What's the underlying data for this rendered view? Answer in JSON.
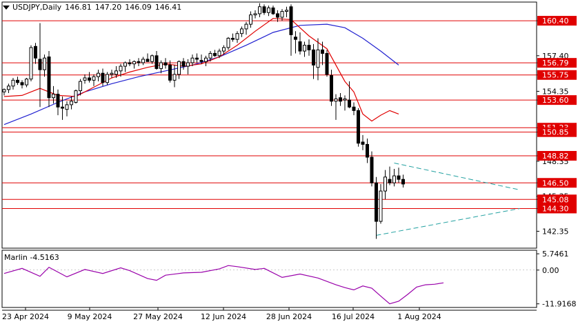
{
  "header": {
    "symbol": "USDJPY,Daily",
    "open": "146.81",
    "high": "147.20",
    "low": "146.09",
    "close": "146.41"
  },
  "indicator": {
    "name": "Marlin",
    "value": "-4.5163"
  },
  "colors": {
    "bull": "#ffffff",
    "bear": "#000000",
    "level_line": "#e00000",
    "level_tag_bg": "#e00000",
    "level_tag_text": "#ffffff",
    "ma_fast": "#e00000",
    "ma_slow": "#2020d0",
    "oscillator": "#9900aa",
    "triangle": "#20a0a0",
    "grid": "#000000"
  },
  "chart_data": [
    {
      "type": "candlestick",
      "title": "USDJPY,Daily",
      "ylim": [
        140.9,
        162.0
      ],
      "y_ticks": [
        "160.40",
        "157.40",
        "156.79",
        "155.75",
        "154.35",
        "153.60",
        "151.23",
        "150.85",
        "148.82",
        "148.35",
        "146.50",
        "145.35",
        "145.08",
        "144.30",
        "142.35"
      ],
      "x_tick_labels": [
        "23 Apr 2024",
        "9 May 2024",
        "27 May 2024",
        "12 Jun 2024",
        "28 Jun 2024",
        "16 Jul 2024",
        "1 Aug 2024"
      ],
      "levels": [
        {
          "value": 160.4,
          "label": "160.40"
        },
        {
          "value": 156.79,
          "label": "156.79"
        },
        {
          "value": 155.75,
          "label": "155.75"
        },
        {
          "value": 153.6,
          "label": "153.60"
        },
        {
          "value": 151.23,
          "label": "151.23"
        },
        {
          "value": 150.85,
          "label": "150.85"
        },
        {
          "value": 148.82,
          "label": "148.82"
        },
        {
          "value": 146.5,
          "label": "146.50"
        },
        {
          "value": 145.08,
          "label": "145.08"
        },
        {
          "value": 144.3,
          "label": "144.30"
        }
      ],
      "ohlc": [
        [
          154.3,
          154.6,
          154.0,
          154.5
        ],
        [
          154.5,
          155.0,
          154.2,
          154.8
        ],
        [
          154.8,
          155.5,
          154.5,
          155.3
        ],
        [
          155.3,
          155.6,
          154.9,
          155.1
        ],
        [
          155.1,
          155.3,
          154.6,
          154.9
        ],
        [
          154.9,
          155.5,
          154.7,
          155.4
        ],
        [
          155.4,
          158.3,
          155.2,
          158.1
        ],
        [
          158.2,
          158.5,
          156.7,
          157.2
        ],
        [
          157.1,
          160.2,
          153.0,
          156.2
        ],
        [
          156.2,
          157.5,
          155.6,
          157.2
        ],
        [
          157.3,
          157.8,
          153.0,
          153.8
        ],
        [
          153.8,
          154.8,
          153.3,
          154.1
        ],
        [
          154.1,
          154.5,
          152.3,
          153.0
        ],
        [
          153.0,
          153.9,
          151.9,
          152.9
        ],
        [
          152.8,
          153.5,
          152.2,
          153.2
        ],
        [
          153.2,
          153.9,
          152.8,
          153.5
        ],
        [
          153.4,
          154.5,
          153.3,
          154.4
        ],
        [
          154.4,
          155.4,
          154.0,
          155.2
        ],
        [
          155.3,
          155.8,
          155.0,
          155.5
        ],
        [
          155.5,
          156.0,
          155.1,
          155.3
        ],
        [
          155.3,
          155.8,
          154.8,
          155.6
        ],
        [
          155.6,
          156.2,
          155.2,
          155.9
        ],
        [
          155.9,
          156.3,
          154.8,
          155.1
        ],
        [
          155.1,
          156.0,
          154.9,
          155.8
        ],
        [
          155.8,
          156.2,
          155.5,
          155.9
        ],
        [
          155.8,
          156.5,
          155.5,
          156.1
        ],
        [
          156.1,
          156.7,
          155.6,
          156.5
        ],
        [
          156.5,
          156.9,
          156.0,
          156.8
        ],
        [
          156.8,
          157.1,
          156.5,
          156.7
        ],
        [
          156.7,
          157.0,
          156.3,
          156.9
        ],
        [
          156.9,
          157.2,
          156.5,
          156.8
        ],
        [
          156.8,
          157.3,
          156.6,
          157.1
        ],
        [
          157.1,
          157.6,
          156.9,
          156.9
        ],
        [
          156.9,
          157.5,
          156.7,
          157.4
        ],
        [
          157.4,
          157.8,
          156.2,
          156.3
        ],
        [
          156.3,
          157.0,
          155.9,
          156.8
        ],
        [
          156.8,
          157.2,
          156.3,
          156.6
        ],
        [
          156.6,
          157.0,
          155.1,
          155.3
        ],
        [
          155.3,
          156.6,
          154.7,
          155.8
        ],
        [
          155.8,
          157.0,
          155.4,
          156.9
        ],
        [
          156.9,
          157.2,
          156.2,
          156.5
        ],
        [
          156.5,
          157.1,
          155.8,
          156.8
        ],
        [
          156.8,
          157.5,
          156.5,
          157.2
        ],
        [
          157.2,
          157.6,
          156.8,
          157.1
        ],
        [
          157.0,
          157.5,
          156.7,
          156.9
        ],
        [
          156.9,
          157.4,
          156.5,
          157.2
        ],
        [
          157.2,
          157.8,
          156.9,
          157.6
        ],
        [
          157.6,
          157.9,
          157.3,
          157.4
        ],
        [
          157.4,
          158.0,
          157.2,
          157.8
        ],
        [
          157.8,
          158.3,
          157.5,
          158.1
        ],
        [
          158.1,
          159.0,
          157.9,
          158.9
        ],
        [
          158.9,
          159.3,
          158.6,
          158.8
        ],
        [
          158.8,
          159.5,
          158.5,
          159.3
        ],
        [
          159.3,
          159.9,
          159.0,
          159.7
        ],
        [
          159.7,
          160.3,
          159.2,
          160.1
        ],
        [
          160.1,
          161.2,
          159.8,
          160.9
        ],
        [
          160.9,
          161.3,
          160.6,
          161.0
        ],
        [
          161.0,
          161.9,
          160.7,
          161.6
        ],
        [
          161.6,
          161.8,
          160.9,
          161.1
        ],
        [
          161.1,
          161.7,
          160.8,
          161.5
        ],
        [
          161.5,
          161.7,
          160.9,
          161.0
        ],
        [
          161.0,
          161.3,
          160.3,
          160.7
        ],
        [
          160.7,
          161.4,
          160.4,
          161.2
        ],
        [
          161.2,
          161.6,
          160.7,
          161.3
        ],
        [
          161.6,
          161.8,
          157.4,
          159.2
        ],
        [
          159.0,
          159.5,
          157.6,
          158.8
        ],
        [
          158.6,
          159.4,
          157.5,
          157.8
        ],
        [
          157.8,
          158.6,
          157.3,
          158.3
        ],
        [
          158.3,
          158.8,
          157.4,
          157.9
        ],
        [
          157.9,
          158.4,
          155.4,
          156.6
        ],
        [
          156.4,
          158.9,
          155.3,
          157.9
        ],
        [
          157.9,
          158.6,
          156.6,
          157.6
        ],
        [
          157.6,
          157.9,
          155.6,
          155.8
        ],
        [
          155.7,
          156.2,
          153.1,
          153.5
        ],
        [
          153.5,
          154.1,
          151.9,
          153.7
        ],
        [
          153.8,
          154.2,
          153.1,
          153.5
        ],
        [
          153.6,
          154.0,
          152.7,
          153.7
        ],
        [
          153.6,
          155.2,
          152.9,
          153.0
        ],
        [
          153.0,
          153.4,
          152.3,
          152.7
        ],
        [
          152.7,
          152.9,
          149.6,
          149.9
        ],
        [
          150.0,
          150.6,
          149.3,
          149.8
        ],
        [
          149.8,
          150.3,
          148.2,
          148.7
        ],
        [
          148.7,
          149.2,
          146.2,
          146.5
        ],
        [
          146.5,
          147.0,
          141.7,
          143.2
        ],
        [
          143.2,
          146.4,
          143.0,
          145.8
        ],
        [
          145.8,
          147.6,
          145.1,
          147.0
        ],
        [
          146.8,
          147.9,
          146.3,
          146.5
        ],
        [
          146.5,
          147.7,
          146.2,
          147.1
        ],
        [
          147.1,
          147.8,
          146.5,
          146.8
        ],
        [
          146.8,
          147.2,
          146.1,
          146.4
        ]
      ],
      "ma_fast": [
        [
          0,
          153.9
        ],
        [
          4,
          154.0
        ],
        [
          8,
          154.6
        ],
        [
          12,
          154.0
        ],
        [
          16,
          153.9
        ],
        [
          20,
          154.7
        ],
        [
          24,
          155.5
        ],
        [
          28,
          156.0
        ],
        [
          32,
          156.4
        ],
        [
          36,
          156.7
        ],
        [
          40,
          156.5
        ],
        [
          44,
          156.7
        ],
        [
          48,
          157.3
        ],
        [
          52,
          158.3
        ],
        [
          56,
          159.5
        ],
        [
          60,
          160.6
        ],
        [
          64,
          160.5
        ],
        [
          68,
          159.1
        ],
        [
          72,
          158.0
        ],
        [
          76,
          155.2
        ],
        [
          78,
          154.3
        ],
        [
          80,
          152.4
        ],
        [
          82,
          151.8
        ],
        [
          84,
          152.3
        ],
        [
          86,
          152.7
        ],
        [
          88,
          152.4
        ]
      ],
      "ma_slow": [
        [
          0,
          151.5
        ],
        [
          6,
          152.4
        ],
        [
          12,
          153.4
        ],
        [
          18,
          154.3
        ],
        [
          24,
          155.0
        ],
        [
          30,
          155.6
        ],
        [
          36,
          156.1
        ],
        [
          42,
          156.6
        ],
        [
          48,
          157.3
        ],
        [
          54,
          158.3
        ],
        [
          60,
          159.4
        ],
        [
          66,
          160.0
        ],
        [
          72,
          160.1
        ],
        [
          76,
          159.8
        ],
        [
          80,
          158.9
        ],
        [
          84,
          157.8
        ],
        [
          88,
          156.6
        ]
      ],
      "triangle": {
        "upper": [
          [
            87,
            148.2
          ],
          [
            115,
            145.9
          ]
        ],
        "lower": [
          [
            83,
            142.0
          ],
          [
            115,
            144.3
          ]
        ]
      }
    },
    {
      "type": "line",
      "name": "Marlin",
      "value_label": "-4.5163",
      "ylim": [
        -13.2,
        7.0
      ],
      "y_ticks": [
        "5.7461",
        "0.00",
        "-11.9168"
      ],
      "values": [
        [
          0,
          -1.2
        ],
        [
          4,
          0.6
        ],
        [
          8,
          -2.2
        ],
        [
          10,
          1.0
        ],
        [
          14,
          -2.4
        ],
        [
          18,
          0.2
        ],
        [
          22,
          -1.2
        ],
        [
          26,
          0.8
        ],
        [
          28,
          -0.2
        ],
        [
          32,
          -3.0
        ],
        [
          34,
          -3.6
        ],
        [
          36,
          -1.8
        ],
        [
          40,
          -1.0
        ],
        [
          44,
          -0.8
        ],
        [
          48,
          0.4
        ],
        [
          50,
          1.6
        ],
        [
          52,
          1.2
        ],
        [
          56,
          0.2
        ],
        [
          58,
          0.6
        ],
        [
          62,
          -2.6
        ],
        [
          66,
          -1.4
        ],
        [
          70,
          -2.8
        ],
        [
          74,
          -5.2
        ],
        [
          76,
          -6.2
        ],
        [
          78,
          -7.0
        ],
        [
          80,
          -5.6
        ],
        [
          82,
          -6.4
        ],
        [
          84,
          -9.2
        ],
        [
          86,
          -11.9
        ],
        [
          88,
          -11.0
        ],
        [
          90,
          -8.6
        ],
        [
          92,
          -6.0
        ],
        [
          94,
          -5.2
        ],
        [
          96,
          -5.0
        ],
        [
          98,
          -4.5
        ]
      ]
    }
  ]
}
